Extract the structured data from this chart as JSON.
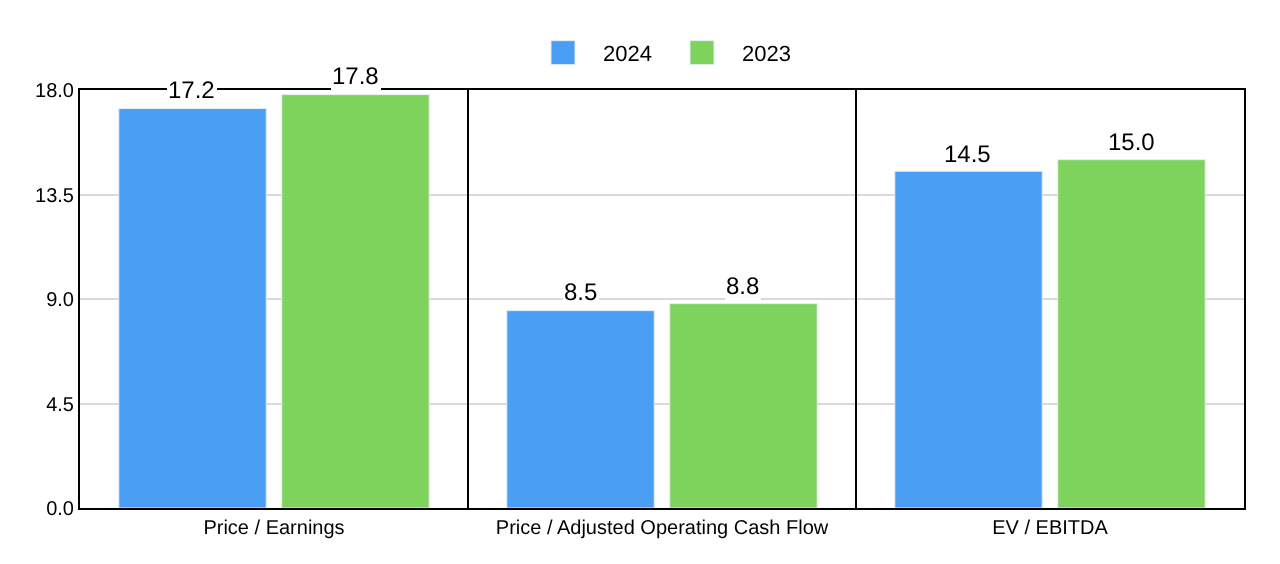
{
  "chart_data": {
    "type": "bar",
    "categories": [
      "Price / Earnings",
      "Price / Adjusted Operating Cash Flow",
      "EV / EBITDA"
    ],
    "series": [
      {
        "name": "2024",
        "color": "#4a9ff5",
        "values": [
          17.2,
          8.5,
          14.5
        ],
        "value_labels": [
          "17.2",
          "8.5",
          "14.5"
        ]
      },
      {
        "name": "2023",
        "color": "#7dd35b",
        "values": [
          17.8,
          8.8,
          15.0
        ],
        "value_labels": [
          "17.8",
          "8.8",
          "15.0"
        ]
      }
    ],
    "ylim": [
      0,
      18
    ],
    "yticks": [
      {
        "value": 0,
        "label": "0.0"
      },
      4.5,
      {
        "value": 9,
        "label": "9.0"
      },
      13.5,
      {
        "value": 18,
        "label": "18.0"
      }
    ],
    "grid": true,
    "legend": "top"
  }
}
